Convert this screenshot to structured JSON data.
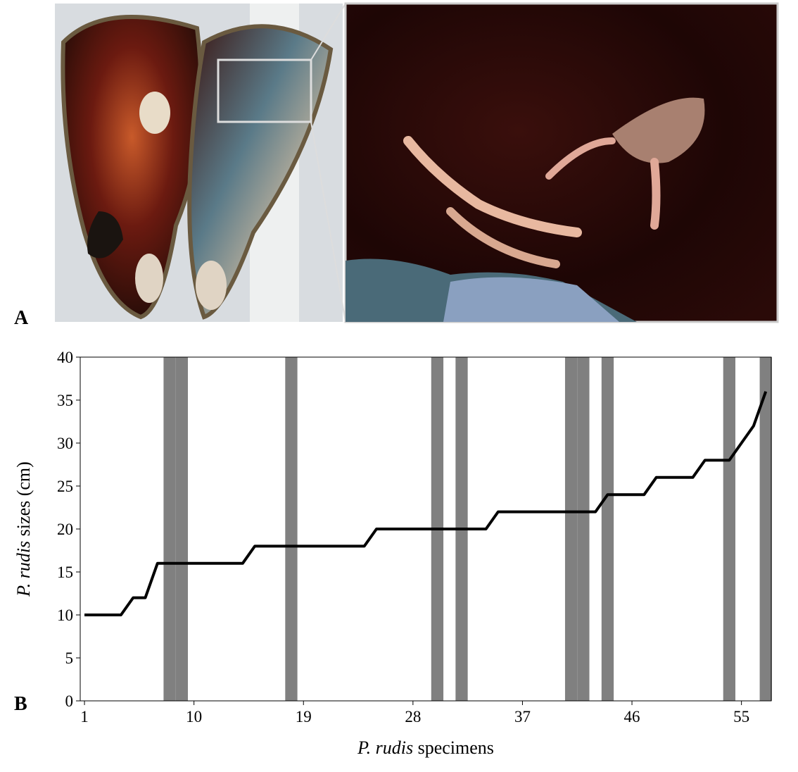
{
  "panel_labels": [
    "A",
    "B"
  ],
  "chart_data": {
    "type": "line",
    "xlabel": [
      {
        "text": "P. rudis",
        "italic": true
      },
      {
        "text": " specimens",
        "italic": false
      }
    ],
    "ylabel": [
      {
        "text": "P. rudis",
        "italic": true
      },
      {
        "text": " sizes (cm)",
        "italic": false
      }
    ],
    "x": [
      1,
      2,
      3,
      4,
      5,
      6,
      7,
      8,
      9,
      10,
      11,
      12,
      13,
      14,
      15,
      16,
      17,
      18,
      19,
      20,
      21,
      22,
      23,
      24,
      25,
      26,
      27,
      28,
      29,
      30,
      31,
      32,
      33,
      34,
      35,
      36,
      37,
      38,
      39,
      40,
      41,
      42,
      43,
      44,
      45,
      46,
      47,
      48,
      49,
      50,
      51,
      52,
      53,
      54,
      55,
      56,
      57
    ],
    "series": [
      {
        "color": "#000000",
        "values": [
          10,
          10,
          10,
          10,
          12,
          12,
          16,
          16,
          16,
          16,
          16,
          16,
          16,
          16,
          18,
          18,
          18,
          18,
          18,
          18,
          18,
          18,
          18,
          18,
          20,
          20,
          20,
          20,
          20,
          20,
          20,
          20,
          20,
          20,
          22,
          22,
          22,
          22,
          22,
          22,
          22,
          22,
          22,
          24,
          24,
          24,
          24,
          26,
          26,
          26,
          26,
          28,
          28,
          28,
          30,
          32,
          36
        ]
      }
    ],
    "highlighted": [
      8,
      9,
      18,
      30,
      32,
      41,
      42,
      44,
      54,
      57
    ],
    "highlight_color": "#808080",
    "xlim": [
      0.65,
      57.45
    ],
    "xticks": [
      1,
      10,
      19,
      28,
      37,
      46,
      55
    ],
    "ylim": [
      0,
      40
    ],
    "yticks": [
      0,
      5,
      10,
      15,
      20,
      25,
      30,
      35,
      40
    ]
  }
}
